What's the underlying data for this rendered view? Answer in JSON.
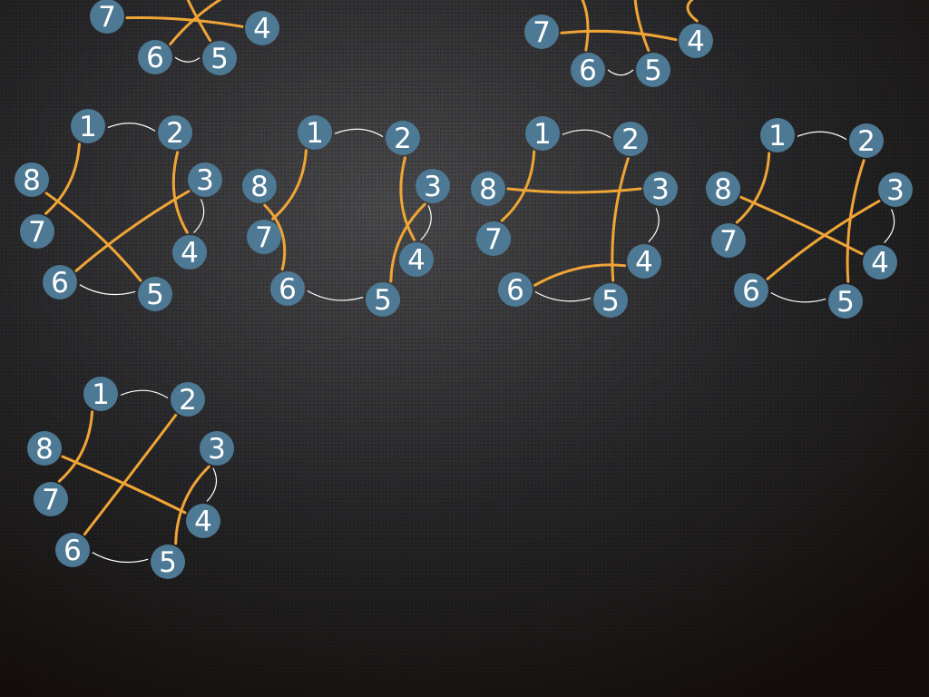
{
  "diagrams": [
    {
      "nodes": [
        "7",
        "6",
        "5",
        "4"
      ]
    },
    {
      "nodes": [
        "7",
        "6",
        "5",
        "4"
      ]
    },
    {
      "nodes": [
        "1",
        "2",
        "3",
        "4",
        "5",
        "6",
        "7",
        "8"
      ]
    },
    {
      "nodes": [
        "1",
        "2",
        "3",
        "4",
        "5",
        "6",
        "7",
        "8"
      ]
    },
    {
      "nodes": [
        "1",
        "2",
        "3",
        "4",
        "5",
        "6",
        "7",
        "8"
      ]
    },
    {
      "nodes": [
        "1",
        "2",
        "3",
        "4",
        "5",
        "6",
        "7",
        "8"
      ]
    },
    {
      "nodes": [
        "1",
        "2",
        "3",
        "4",
        "5",
        "6",
        "7",
        "8"
      ]
    }
  ]
}
